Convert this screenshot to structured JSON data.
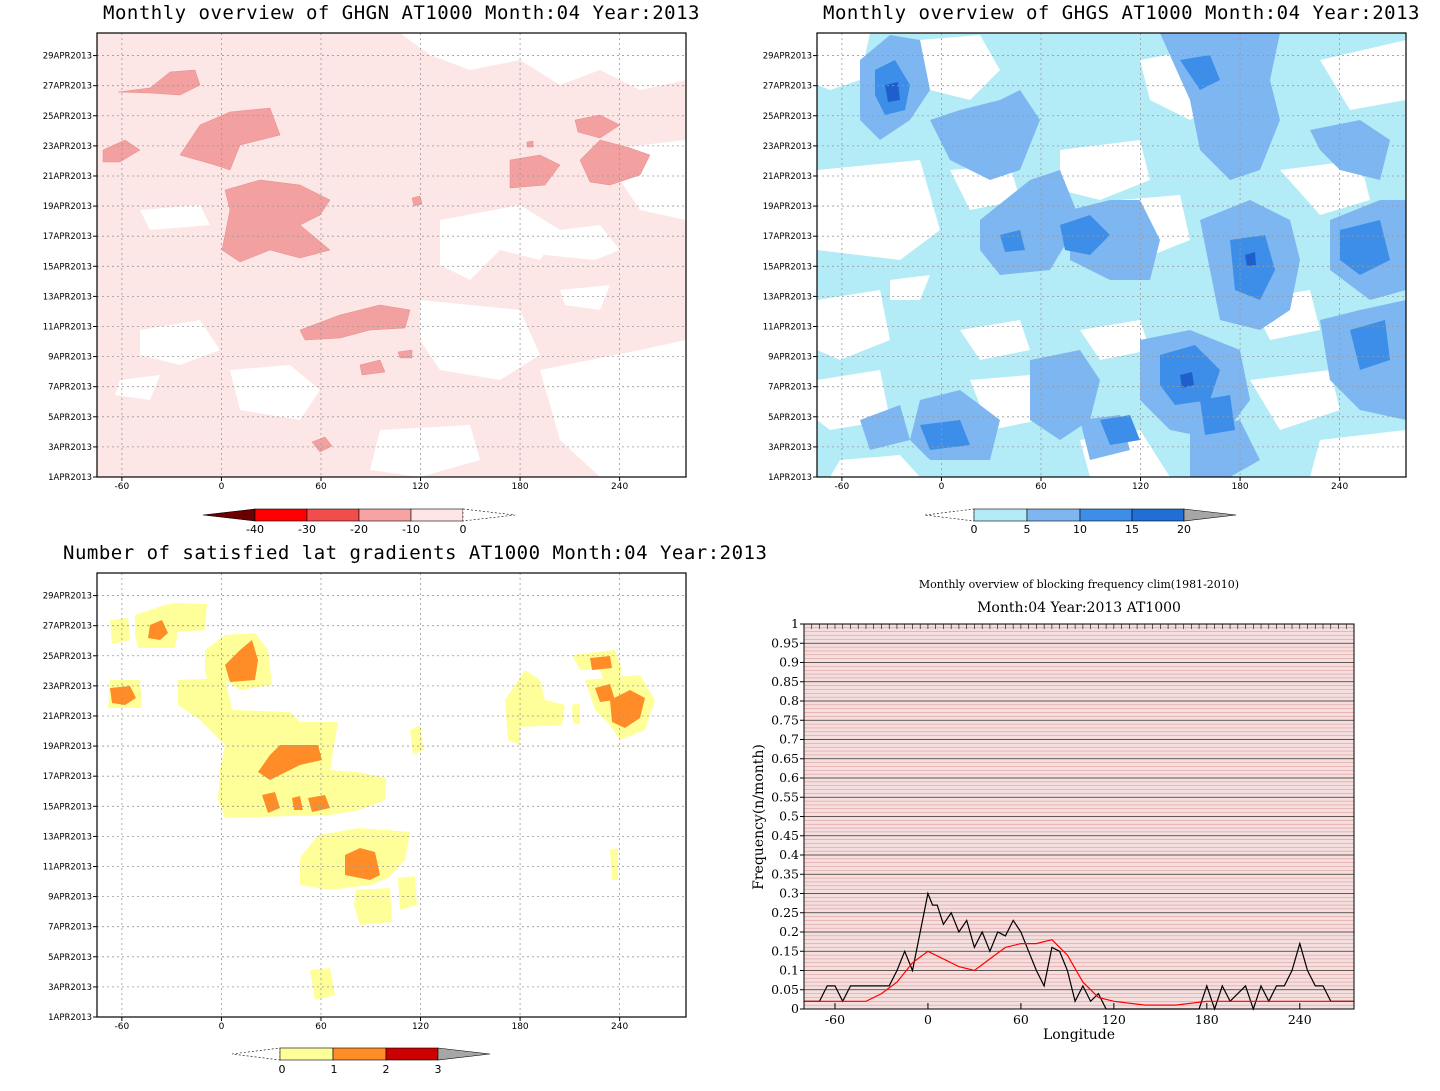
{
  "panels": {
    "ghgn": {
      "title": "Monthly overview of GHGN AT1000 Month:04 Year:2013",
      "y_ticks": [
        "29APR2013",
        "27APR2013",
        "25APR2013",
        "23APR2013",
        "21APR2013",
        "19APR2013",
        "17APR2013",
        "15APR2013",
        "13APR2013",
        "11APR2013",
        "9APR2013",
        "7APR2013",
        "5APR2013",
        "3APR2013",
        "1APR2013"
      ],
      "x_ticks": [
        "-60",
        "0",
        "60",
        "120",
        "180",
        "240"
      ],
      "colorbar": {
        "labels": [
          "-40",
          "-30",
          "-20",
          "-10",
          "0"
        ],
        "colors": [
          "#6b0000",
          "#ff0000",
          "#f24d4d",
          "#f7a3a3",
          "#fde6e6"
        ]
      },
      "fill_colors": {
        "background": "#fde6e6",
        "strong": "#f2a0a0",
        "white": "#ffffff"
      }
    },
    "ghgs": {
      "title": "Monthly overview of GHGS AT1000 Month:04 Year:2013",
      "y_ticks": [
        "29APR2013",
        "27APR2013",
        "25APR2013",
        "23APR2013",
        "21APR2013",
        "19APR2013",
        "17APR2013",
        "15APR2013",
        "13APR2013",
        "11APR2013",
        "9APR2013",
        "7APR2013",
        "5APR2013",
        "3APR2013",
        "1APR2013"
      ],
      "x_ticks": [
        "-60",
        "0",
        "60",
        "120",
        "180",
        "240"
      ],
      "colorbar": {
        "labels": [
          "0",
          "5",
          "10",
          "15",
          "20"
        ],
        "colors": [
          "#b3ecf7",
          "#7db6f0",
          "#3d8ee8",
          "#1f6fd6",
          "#a6a6a6"
        ]
      },
      "fill_colors": {
        "light": "#b3ecf7",
        "mid": "#7db6f0",
        "dark": "#3d8ee8",
        "darkest": "#1f5fcc"
      }
    },
    "lat": {
      "title": "Number of satisfied lat gradients AT1000 Month:04 Year:2013",
      "y_ticks": [
        "29APR2013",
        "27APR2013",
        "25APR2013",
        "23APR2013",
        "21APR2013",
        "19APR2013",
        "17APR2013",
        "15APR2013",
        "13APR2013",
        "11APR2013",
        "9APR2013",
        "7APR2013",
        "5APR2013",
        "3APR2013",
        "1APR2013"
      ],
      "x_ticks": [
        "-60",
        "0",
        "60",
        "120",
        "180",
        "240"
      ],
      "colorbar": {
        "labels": [
          "0",
          "1",
          "2",
          "3"
        ],
        "colors": [
          "#ffff99",
          "#ff8c26",
          "#cc0000",
          "#a6a6a6"
        ]
      },
      "fill_colors": {
        "yellow": "#ffff99",
        "orange": "#ff8c26"
      }
    },
    "freq": {
      "suptitle": "Monthly overview of blocking frequency clim(1981-2010)",
      "title": "Month:04 Year:2013  AT1000"
    }
  },
  "chart_data": [
    {
      "type": "heatmap",
      "title": "Monthly overview of GHGN AT1000 Month:04 Year:2013",
      "x_ticks": [
        -60,
        0,
        60,
        120,
        180,
        240
      ],
      "xlim": [
        -75,
        280
      ],
      "y_ticks": [
        "1APR2013",
        "3APR2013",
        "5APR2013",
        "7APR2013",
        "9APR2013",
        "11APR2013",
        "13APR2013",
        "15APR2013",
        "17APR2013",
        "19APR2013",
        "21APR2013",
        "23APR2013",
        "25APR2013",
        "27APR2013",
        "29APR2013"
      ],
      "colorbar_levels": [
        -40,
        -30,
        -20,
        -10,
        0
      ],
      "grid": true
    },
    {
      "type": "heatmap",
      "title": "Monthly overview of GHGS AT1000 Month:04 Year:2013",
      "x_ticks": [
        -60,
        0,
        60,
        120,
        180,
        240
      ],
      "xlim": [
        -75,
        280
      ],
      "y_ticks": [
        "1APR2013",
        "3APR2013",
        "5APR2013",
        "7APR2013",
        "9APR2013",
        "11APR2013",
        "13APR2013",
        "15APR2013",
        "17APR2013",
        "19APR2013",
        "21APR2013",
        "23APR2013",
        "25APR2013",
        "27APR2013",
        "29APR2013"
      ],
      "colorbar_levels": [
        0,
        5,
        10,
        15,
        20
      ],
      "grid": true
    },
    {
      "type": "heatmap",
      "title": "Number of satisfied lat gradients AT1000 Month:04 Year:2013",
      "x_ticks": [
        -60,
        0,
        60,
        120,
        180,
        240
      ],
      "xlim": [
        -75,
        280
      ],
      "y_ticks": [
        "1APR2013",
        "3APR2013",
        "5APR2013",
        "7APR2013",
        "9APR2013",
        "11APR2013",
        "13APR2013",
        "15APR2013",
        "17APR2013",
        "19APR2013",
        "21APR2013",
        "23APR2013",
        "25APR2013",
        "27APR2013",
        "29APR2013"
      ],
      "colorbar_levels": [
        0,
        1,
        2,
        3
      ],
      "grid": true
    },
    {
      "type": "line",
      "title": "Month:04 Year:2013  AT1000",
      "xlabel": "Longitude",
      "ylabel": "Frequency(n/month)",
      "xlim": [
        -80,
        275
      ],
      "ylim": [
        0,
        1
      ],
      "x_ticks": [
        -60,
        0,
        60,
        120,
        180,
        240
      ],
      "y_ticks": [
        0,
        0.05,
        0.1,
        0.15,
        0.2,
        0.25,
        0.3,
        0.35,
        0.4,
        0.45,
        0.5,
        0.55,
        0.6,
        0.65,
        0.7,
        0.75,
        0.8,
        0.85,
        0.9,
        0.95,
        1
      ],
      "y_tick_labels": [
        "0",
        "0.05",
        "0.1",
        "0.15",
        "0.2",
        "0.25",
        "0.3",
        "0.35",
        "0.4",
        "0.45",
        "0.5",
        "0.55",
        "0.6",
        "0.65",
        "0.7",
        "0.75",
        "0.8",
        "0.85",
        "0.9",
        "0.95",
        "1"
      ],
      "x_tick_labels": [
        "-60",
        "0",
        "60",
        "120",
        "180",
        "240"
      ],
      "series": [
        {
          "color": "#000000",
          "x": [
            -80,
            -70,
            -65,
            -60,
            -55,
            -50,
            -45,
            -40,
            -35,
            -30,
            -25,
            -20,
            -15,
            -10,
            -5,
            0,
            3,
            6,
            10,
            15,
            20,
            25,
            30,
            35,
            40,
            45,
            50,
            55,
            60,
            65,
            70,
            75,
            80,
            85,
            90,
            95,
            100,
            105,
            110,
            115,
            120,
            130,
            140,
            150,
            160,
            170,
            175,
            180,
            185,
            190,
            195,
            200,
            205,
            210,
            215,
            220,
            225,
            230,
            235,
            240,
            245,
            250,
            255,
            260,
            265,
            270,
            275
          ],
          "y": [
            0.02,
            0.02,
            0.06,
            0.06,
            0.02,
            0.06,
            0.06,
            0.06,
            0.06,
            0.06,
            0.06,
            0.1,
            0.15,
            0.1,
            0.2,
            0.3,
            0.27,
            0.27,
            0.22,
            0.25,
            0.2,
            0.23,
            0.16,
            0.2,
            0.15,
            0.2,
            0.19,
            0.23,
            0.2,
            0.15,
            0.1,
            0.06,
            0.16,
            0.15,
            0.1,
            0.02,
            0.06,
            0.02,
            0.04,
            0.0,
            0.0,
            0.0,
            0.0,
            0.0,
            0.0,
            0.0,
            0.0,
            0.06,
            0.0,
            0.06,
            0.02,
            0.04,
            0.06,
            0.0,
            0.06,
            0.02,
            0.06,
            0.06,
            0.1,
            0.17,
            0.1,
            0.06,
            0.06,
            0.02,
            0.02,
            0.02,
            0.02
          ]
        },
        {
          "color": "#ff0000",
          "x": [
            -80,
            -70,
            -60,
            -50,
            -40,
            -30,
            -20,
            -10,
            0,
            10,
            20,
            30,
            40,
            50,
            60,
            70,
            80,
            90,
            100,
            110,
            120,
            140,
            160,
            180,
            200,
            220,
            240,
            260,
            275
          ],
          "y": [
            0.02,
            0.02,
            0.02,
            0.02,
            0.02,
            0.04,
            0.07,
            0.12,
            0.15,
            0.13,
            0.11,
            0.1,
            0.13,
            0.16,
            0.17,
            0.17,
            0.18,
            0.14,
            0.07,
            0.03,
            0.02,
            0.01,
            0.01,
            0.02,
            0.02,
            0.02,
            0.02,
            0.02,
            0.02
          ]
        }
      ]
    }
  ]
}
